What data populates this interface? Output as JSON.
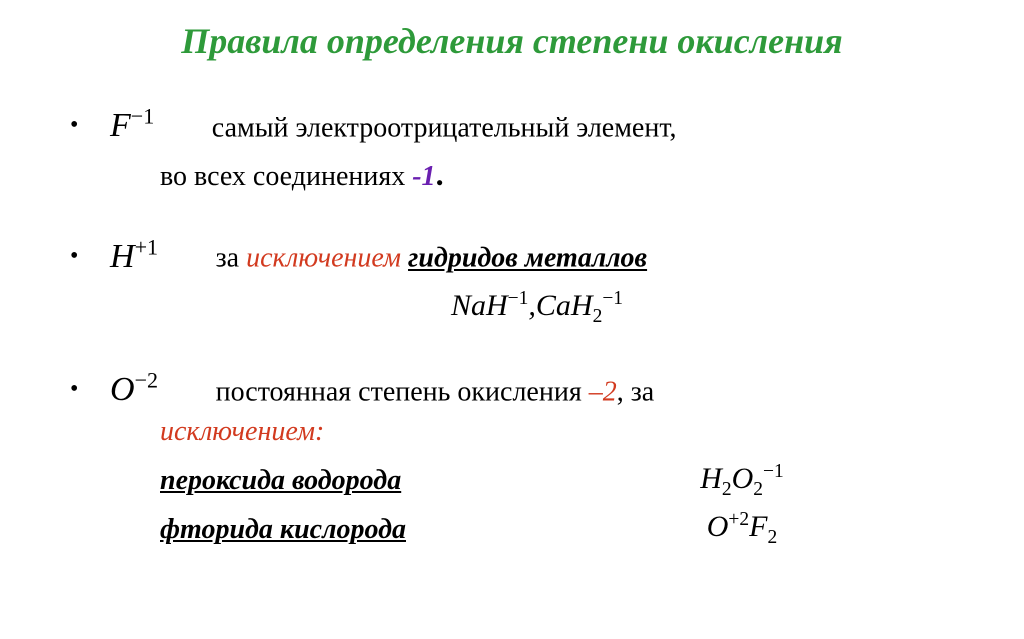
{
  "colors": {
    "title": "#2e9a3a",
    "accent_purple": "#6a1fb0",
    "accent_red": "#d23a1f",
    "text": "#000000",
    "background": "#ffffff"
  },
  "fonts": {
    "family": "Times New Roman",
    "title_size_pt": 36,
    "body_size_pt": 28,
    "symbol_size_pt": 34
  },
  "title": "Правила определения степени окисления",
  "items": [
    {
      "symbol_base": "F",
      "symbol_sup": "−1",
      "text_main": "самый  электроотрицательный   элемент,",
      "continuation_pre": "во всех соединениях  ",
      "highlight": "-1",
      "continuation_post": "."
    },
    {
      "symbol_base": "H",
      "symbol_sup": "+1",
      "text_pre": "за ",
      "text_red": "исключением",
      "text_space": " ",
      "text_underline": "гидридов металлов",
      "formula_line": [
        {
          "base": "NaH",
          "sup": "−1"
        },
        {
          "sep": ","
        },
        {
          "base": "CaH",
          "sub": "2",
          "sup": "−1"
        }
      ]
    },
    {
      "symbol_base": "O",
      "symbol_sup": "−2",
      "text_main_pre": "постоянная степень окисления ",
      "text_main_red": "–2",
      "text_main_post": ", за",
      "exception_word": "исключением:",
      "exceptions": [
        {
          "label": "пероксида водорода",
          "formula": [
            {
              "base": "H",
              "sub": "2"
            },
            {
              "base": "O",
              "sub": "2",
              "sup": "−1"
            }
          ]
        },
        {
          "label": "фторида кислорода",
          "formula": [
            {
              "base": "O",
              "sup": "+2"
            },
            {
              "base": "F",
              "sub": "2"
            }
          ]
        }
      ]
    }
  ]
}
